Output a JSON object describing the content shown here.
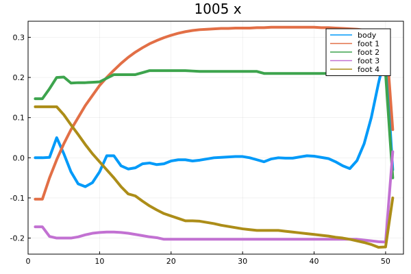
{
  "chart_data": {
    "type": "line",
    "title": "1005 x",
    "xlabel": "",
    "ylabel": "",
    "xlim": [
      0,
      52.5
    ],
    "ylim": [
      -0.24,
      0.34
    ],
    "xticks": [
      0,
      10,
      20,
      30,
      40,
      50
    ],
    "yticks": [
      -0.2,
      -0.1,
      0.0,
      0.1,
      0.2,
      0.3
    ],
    "ytick_labels": [
      "-0.2",
      "-0.1",
      "0.0",
      "0.1",
      "0.2",
      "0.3"
    ],
    "grid": true,
    "legend_position": "top-right",
    "series": [
      {
        "name": "body",
        "color": "#009af9",
        "points": [
          [
            1,
            0.0
          ],
          [
            2,
            0.0
          ],
          [
            3,
            0.001
          ],
          [
            4,
            0.05
          ],
          [
            5,
            0.01
          ],
          [
            6,
            -0.035
          ],
          [
            7,
            -0.065
          ],
          [
            8,
            -0.072
          ],
          [
            9,
            -0.062
          ],
          [
            10,
            -0.035
          ],
          [
            11,
            0.005
          ],
          [
            12,
            0.005
          ],
          [
            13,
            -0.02
          ],
          [
            14,
            -0.028
          ],
          [
            15,
            -0.025
          ],
          [
            16,
            -0.015
          ],
          [
            17,
            -0.013
          ],
          [
            18,
            -0.017
          ],
          [
            19,
            -0.015
          ],
          [
            20,
            -0.008
          ],
          [
            21,
            -0.005
          ],
          [
            22,
            -0.005
          ],
          [
            23,
            -0.008
          ],
          [
            24,
            -0.006
          ],
          [
            25,
            -0.003
          ],
          [
            26,
            0.0
          ],
          [
            27,
            0.001
          ],
          [
            28,
            0.002
          ],
          [
            29,
            0.003
          ],
          [
            30,
            0.003
          ],
          [
            31,
            0.0
          ],
          [
            32,
            -0.005
          ],
          [
            33,
            -0.01
          ],
          [
            34,
            -0.003
          ],
          [
            35,
            0.0
          ],
          [
            36,
            -0.001
          ],
          [
            37,
            -0.001
          ],
          [
            38,
            0.002
          ],
          [
            39,
            0.005
          ],
          [
            40,
            0.004
          ],
          [
            41,
            0.001
          ],
          [
            42,
            -0.002
          ],
          [
            43,
            -0.01
          ],
          [
            44,
            -0.02
          ],
          [
            45,
            -0.027
          ],
          [
            46,
            -0.007
          ],
          [
            47,
            0.035
          ],
          [
            48,
            0.1
          ],
          [
            49,
            0.185
          ],
          [
            50,
            0.26
          ],
          [
            51,
            -0.03
          ]
        ]
      },
      {
        "name": "foot 1",
        "color": "#e26f46",
        "points": [
          [
            1,
            -0.103
          ],
          [
            2,
            -0.103
          ],
          [
            3,
            -0.05
          ],
          [
            4,
            -0.005
          ],
          [
            5,
            0.035
          ],
          [
            6,
            0.07
          ],
          [
            7,
            0.1
          ],
          [
            8,
            0.13
          ],
          [
            9,
            0.155
          ],
          [
            10,
            0.18
          ],
          [
            11,
            0.2
          ],
          [
            12,
            0.218
          ],
          [
            13,
            0.235
          ],
          [
            14,
            0.25
          ],
          [
            15,
            0.263
          ],
          [
            16,
            0.274
          ],
          [
            17,
            0.284
          ],
          [
            18,
            0.292
          ],
          [
            19,
            0.299
          ],
          [
            20,
            0.305
          ],
          [
            21,
            0.31
          ],
          [
            22,
            0.314
          ],
          [
            23,
            0.317
          ],
          [
            24,
            0.319
          ],
          [
            25,
            0.32
          ],
          [
            26,
            0.321
          ],
          [
            27,
            0.322
          ],
          [
            28,
            0.322
          ],
          [
            29,
            0.323
          ],
          [
            30,
            0.323
          ],
          [
            31,
            0.323
          ],
          [
            32,
            0.324
          ],
          [
            33,
            0.324
          ],
          [
            34,
            0.325
          ],
          [
            35,
            0.325
          ],
          [
            36,
            0.325
          ],
          [
            37,
            0.325
          ],
          [
            38,
            0.325
          ],
          [
            39,
            0.325
          ],
          [
            40,
            0.325
          ],
          [
            41,
            0.324
          ],
          [
            42,
            0.324
          ],
          [
            43,
            0.323
          ],
          [
            44,
            0.322
          ],
          [
            45,
            0.321
          ],
          [
            46,
            0.32
          ],
          [
            47,
            0.318
          ],
          [
            48,
            0.317
          ],
          [
            49,
            0.316
          ],
          [
            50,
            0.315
          ],
          [
            51,
            0.07
          ]
        ]
      },
      {
        "name": "foot 2",
        "color": "#3da44d",
        "points": [
          [
            1,
            0.147
          ],
          [
            2,
            0.147
          ],
          [
            3,
            0.172
          ],
          [
            4,
            0.2
          ],
          [
            5,
            0.201
          ],
          [
            6,
            0.186
          ],
          [
            7,
            0.187
          ],
          [
            8,
            0.187
          ],
          [
            9,
            0.188
          ],
          [
            10,
            0.189
          ],
          [
            11,
            0.198
          ],
          [
            12,
            0.207
          ],
          [
            13,
            0.207
          ],
          [
            14,
            0.207
          ],
          [
            15,
            0.207
          ],
          [
            16,
            0.212
          ],
          [
            17,
            0.217
          ],
          [
            18,
            0.217
          ],
          [
            19,
            0.217
          ],
          [
            20,
            0.217
          ],
          [
            21,
            0.217
          ],
          [
            22,
            0.217
          ],
          [
            23,
            0.216
          ],
          [
            24,
            0.215
          ],
          [
            25,
            0.215
          ],
          [
            26,
            0.215
          ],
          [
            27,
            0.215
          ],
          [
            28,
            0.215
          ],
          [
            29,
            0.215
          ],
          [
            30,
            0.215
          ],
          [
            31,
            0.215
          ],
          [
            32,
            0.215
          ],
          [
            33,
            0.21
          ],
          [
            34,
            0.21
          ],
          [
            35,
            0.21
          ],
          [
            36,
            0.21
          ],
          [
            37,
            0.21
          ],
          [
            38,
            0.21
          ],
          [
            39,
            0.21
          ],
          [
            40,
            0.21
          ],
          [
            41,
            0.21
          ],
          [
            42,
            0.21
          ],
          [
            43,
            0.21
          ],
          [
            44,
            0.21
          ],
          [
            45,
            0.21
          ],
          [
            46,
            0.21
          ],
          [
            47,
            0.21
          ],
          [
            48,
            0.21
          ],
          [
            49,
            0.21
          ],
          [
            50,
            0.21
          ],
          [
            51,
            -0.05
          ]
        ]
      },
      {
        "name": "foot 3",
        "color": "#c271d2",
        "points": [
          [
            1,
            -0.172
          ],
          [
            2,
            -0.172
          ],
          [
            3,
            -0.196
          ],
          [
            4,
            -0.2
          ],
          [
            5,
            -0.2
          ],
          [
            6,
            -0.2
          ],
          [
            7,
            -0.197
          ],
          [
            8,
            -0.192
          ],
          [
            9,
            -0.188
          ],
          [
            10,
            -0.186
          ],
          [
            11,
            -0.185
          ],
          [
            12,
            -0.185
          ],
          [
            13,
            -0.186
          ],
          [
            14,
            -0.188
          ],
          [
            15,
            -0.191
          ],
          [
            16,
            -0.194
          ],
          [
            17,
            -0.197
          ],
          [
            18,
            -0.199
          ],
          [
            19,
            -0.203
          ],
          [
            20,
            -0.203
          ],
          [
            21,
            -0.203
          ],
          [
            22,
            -0.203
          ],
          [
            23,
            -0.203
          ],
          [
            24,
            -0.203
          ],
          [
            25,
            -0.203
          ],
          [
            26,
            -0.203
          ],
          [
            27,
            -0.203
          ],
          [
            28,
            -0.203
          ],
          [
            29,
            -0.203
          ],
          [
            30,
            -0.203
          ],
          [
            31,
            -0.203
          ],
          [
            32,
            -0.203
          ],
          [
            33,
            -0.203
          ],
          [
            34,
            -0.203
          ],
          [
            35,
            -0.203
          ],
          [
            36,
            -0.203
          ],
          [
            37,
            -0.203
          ],
          [
            38,
            -0.203
          ],
          [
            39,
            -0.203
          ],
          [
            40,
            -0.203
          ],
          [
            41,
            -0.203
          ],
          [
            42,
            -0.203
          ],
          [
            43,
            -0.203
          ],
          [
            44,
            -0.203
          ],
          [
            45,
            -0.203
          ],
          [
            46,
            -0.203
          ],
          [
            47,
            -0.205
          ],
          [
            48,
            -0.207
          ],
          [
            49,
            -0.209
          ],
          [
            50,
            -0.21
          ],
          [
            51,
            0.015
          ]
        ]
      },
      {
        "name": "foot 4",
        "color": "#ac8d18",
        "points": [
          [
            1,
            0.127
          ],
          [
            2,
            0.127
          ],
          [
            3,
            0.127
          ],
          [
            4,
            0.127
          ],
          [
            5,
            0.107
          ],
          [
            6,
            0.082
          ],
          [
            7,
            0.058
          ],
          [
            8,
            0.033
          ],
          [
            9,
            0.01
          ],
          [
            10,
            -0.01
          ],
          [
            11,
            -0.03
          ],
          [
            12,
            -0.05
          ],
          [
            13,
            -0.072
          ],
          [
            14,
            -0.09
          ],
          [
            15,
            -0.095
          ],
          [
            16,
            -0.108
          ],
          [
            17,
            -0.12
          ],
          [
            18,
            -0.13
          ],
          [
            19,
            -0.139
          ],
          [
            20,
            -0.145
          ],
          [
            21,
            -0.151
          ],
          [
            22,
            -0.157
          ],
          [
            23,
            -0.157
          ],
          [
            24,
            -0.158
          ],
          [
            25,
            -0.161
          ],
          [
            26,
            -0.164
          ],
          [
            27,
            -0.168
          ],
          [
            28,
            -0.171
          ],
          [
            29,
            -0.174
          ],
          [
            30,
            -0.177
          ],
          [
            31,
            -0.179
          ],
          [
            32,
            -0.181
          ],
          [
            33,
            -0.181
          ],
          [
            34,
            -0.181
          ],
          [
            35,
            -0.181
          ],
          [
            36,
            -0.183
          ],
          [
            37,
            -0.185
          ],
          [
            38,
            -0.187
          ],
          [
            39,
            -0.189
          ],
          [
            40,
            -0.191
          ],
          [
            41,
            -0.193
          ],
          [
            42,
            -0.195
          ],
          [
            43,
            -0.198
          ],
          [
            44,
            -0.2
          ],
          [
            45,
            -0.203
          ],
          [
            46,
            -0.207
          ],
          [
            47,
            -0.211
          ],
          [
            48,
            -0.216
          ],
          [
            49,
            -0.223
          ],
          [
            50,
            -0.222
          ],
          [
            51,
            -0.1
          ]
        ]
      }
    ]
  }
}
